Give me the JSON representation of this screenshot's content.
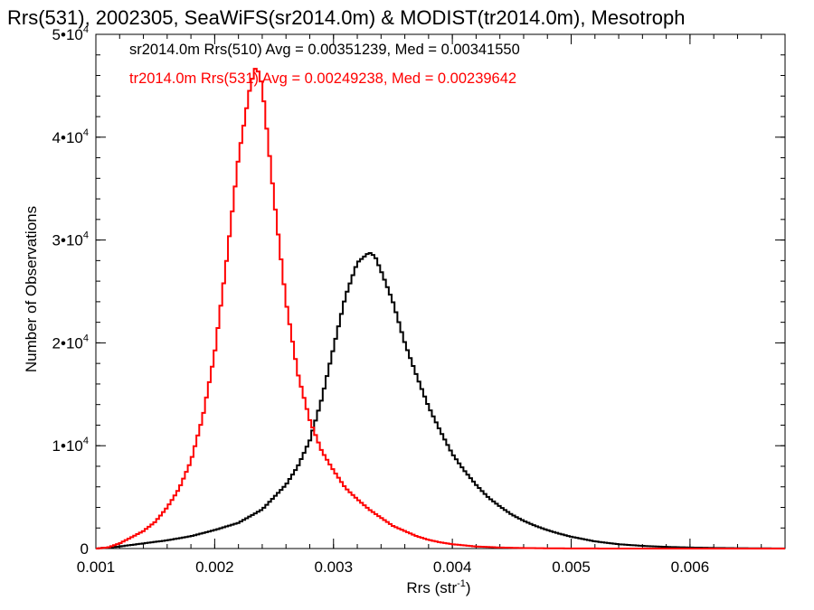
{
  "chart_data": {
    "type": "line",
    "title": "Rrs(531), 2002305, SeaWiFS(sr2014.0m) & MODIST(tr2014.0m), Mesotroph",
    "xlabel_main": "Rrs (str",
    "xlabel_sup": "-1",
    "xlabel_close": ")",
    "ylabel": "Number of Observations",
    "xlim": [
      0.001,
      0.0068
    ],
    "ylim": [
      0,
      50000
    ],
    "x_ticks": [
      {
        "value": 0.001,
        "label": "0.001"
      },
      {
        "value": 0.002,
        "label": "0.002"
      },
      {
        "value": 0.003,
        "label": "0.003"
      },
      {
        "value": 0.004,
        "label": "0.004"
      },
      {
        "value": 0.005,
        "label": "0.005"
      },
      {
        "value": 0.006,
        "label": "0.006"
      }
    ],
    "y_ticks": [
      {
        "value": 0,
        "label": "0",
        "sup": ""
      },
      {
        "value": 10000,
        "label": "1•10",
        "sup": "4"
      },
      {
        "value": 20000,
        "label": "2•10",
        "sup": "4"
      },
      {
        "value": 30000,
        "label": "3•10",
        "sup": "4"
      },
      {
        "value": 40000,
        "label": "4•10",
        "sup": "4"
      },
      {
        "value": 50000,
        "label": "5•10",
        "sup": "4"
      }
    ],
    "x_minor_step": 0.0002,
    "y_minor_step": 2000,
    "series": [
      {
        "label": "sr2014.0m Rrs(510) Avg = 0.00351239, Med = 0.00341550",
        "color": "#000000",
        "x": [
          0.001,
          0.0012,
          0.0014,
          0.0016,
          0.0018,
          0.002,
          0.0022,
          0.0024,
          0.0026,
          0.0027,
          0.0028,
          0.0029,
          0.003,
          0.0031,
          0.0032,
          0.0033,
          0.00335,
          0.0034,
          0.0035,
          0.0036,
          0.0037,
          0.0038,
          0.0039,
          0.004,
          0.0041,
          0.0042,
          0.0043,
          0.0044,
          0.0045,
          0.0046,
          0.0047,
          0.0048,
          0.0049,
          0.005,
          0.0052,
          0.0054,
          0.0056,
          0.0058,
          0.006,
          0.0062,
          0.0064,
          0.0066,
          0.0068
        ],
        "y": [
          0,
          200,
          500,
          800,
          1200,
          1800,
          2500,
          3800,
          6200,
          8000,
          10500,
          14500,
          19500,
          24500,
          27800,
          28800,
          28400,
          27000,
          24000,
          20000,
          16800,
          13800,
          11400,
          9200,
          7600,
          6200,
          5000,
          4100,
          3300,
          2700,
          2200,
          1800,
          1450,
          1150,
          700,
          420,
          260,
          160,
          100,
          60,
          35,
          20,
          10
        ]
      },
      {
        "label": "tr2014.0m Rrs(531) Avg = 0.00249238, Med = 0.00239642",
        "color": "#ff0000",
        "x": [
          0.001,
          0.0011,
          0.0012,
          0.0013,
          0.0014,
          0.0015,
          0.0016,
          0.0017,
          0.0018,
          0.0019,
          0.002,
          0.0021,
          0.0022,
          0.0023,
          0.00235,
          0.0024,
          0.0025,
          0.0026,
          0.0027,
          0.0028,
          0.0029,
          0.003,
          0.0031,
          0.0032,
          0.0033,
          0.0034,
          0.0035,
          0.0036,
          0.0037,
          0.0038,
          0.0039,
          0.004,
          0.0042,
          0.0044,
          0.0046,
          0.0048,
          0.005,
          0.0052,
          0.0054,
          0.0056,
          0.0058,
          0.006,
          0.0062,
          0.0064,
          0.0066,
          0.0068
        ],
        "y": [
          0,
          100,
          500,
          1100,
          1700,
          2600,
          4000,
          5800,
          8500,
          12800,
          19000,
          28000,
          38000,
          45000,
          47000,
          45000,
          34000,
          24000,
          17000,
          12500,
          9500,
          7600,
          5900,
          4800,
          3800,
          3000,
          2200,
          1700,
          1200,
          850,
          600,
          420,
          200,
          100,
          50,
          25,
          12,
          6,
          3,
          2,
          1,
          1,
          0,
          0,
          0,
          0
        ]
      }
    ]
  }
}
